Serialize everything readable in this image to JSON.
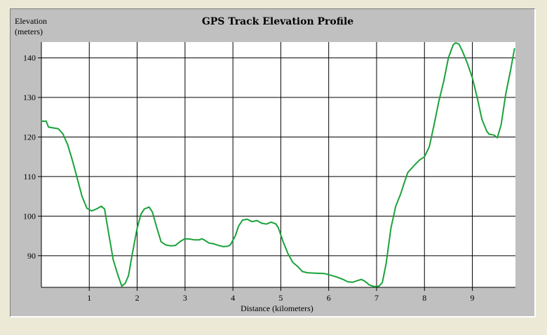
{
  "chart_data": {
    "type": "line",
    "title": "GPS Track Elevation Profile",
    "ylabel_line1": "Elevation",
    "ylabel_line2": "(meters)",
    "xlabel": "Distance (kilometers)",
    "xlim": [
      0,
      9.9
    ],
    "ylim": [
      82,
      144
    ],
    "x_ticks": [
      1,
      2,
      3,
      4,
      5,
      6,
      7,
      8,
      9
    ],
    "y_ticks": [
      90,
      100,
      110,
      120,
      130,
      140
    ],
    "grid": true,
    "legend": "none",
    "series": [
      {
        "color": "#1aa23a",
        "points": [
          [
            0.0,
            124.0
          ],
          [
            0.1,
            124.0
          ],
          [
            0.15,
            122.5
          ],
          [
            0.25,
            122.3
          ],
          [
            0.35,
            122.1
          ],
          [
            0.45,
            120.8
          ],
          [
            0.55,
            118.0
          ],
          [
            0.65,
            114.0
          ],
          [
            0.75,
            109.5
          ],
          [
            0.85,
            105.0
          ],
          [
            0.95,
            102.0
          ],
          [
            1.05,
            101.3
          ],
          [
            1.15,
            101.8
          ],
          [
            1.25,
            102.5
          ],
          [
            1.32,
            101.8
          ],
          [
            1.4,
            96.0
          ],
          [
            1.5,
            89.0
          ],
          [
            1.6,
            85.0
          ],
          [
            1.68,
            82.3
          ],
          [
            1.75,
            83.0
          ],
          [
            1.82,
            85.0
          ],
          [
            1.9,
            90.5
          ],
          [
            2.0,
            97.0
          ],
          [
            2.08,
            100.5
          ],
          [
            2.15,
            101.8
          ],
          [
            2.25,
            102.3
          ],
          [
            2.32,
            101.0
          ],
          [
            2.4,
            97.5
          ],
          [
            2.5,
            93.5
          ],
          [
            2.6,
            92.7
          ],
          [
            2.7,
            92.5
          ],
          [
            2.8,
            92.6
          ],
          [
            2.9,
            93.6
          ],
          [
            3.0,
            94.3
          ],
          [
            3.1,
            94.2
          ],
          [
            3.2,
            94.0
          ],
          [
            3.3,
            94.0
          ],
          [
            3.35,
            94.3
          ],
          [
            3.4,
            94.0
          ],
          [
            3.5,
            93.2
          ],
          [
            3.6,
            93.0
          ],
          [
            3.7,
            92.6
          ],
          [
            3.8,
            92.3
          ],
          [
            3.9,
            92.4
          ],
          [
            3.95,
            92.8
          ],
          [
            4.05,
            95.0
          ],
          [
            4.12,
            97.5
          ],
          [
            4.2,
            99.0
          ],
          [
            4.3,
            99.2
          ],
          [
            4.4,
            98.6
          ],
          [
            4.5,
            98.9
          ],
          [
            4.6,
            98.2
          ],
          [
            4.7,
            98.0
          ],
          [
            4.8,
            98.5
          ],
          [
            4.9,
            98.0
          ],
          [
            4.95,
            97.0
          ],
          [
            5.05,
            93.5
          ],
          [
            5.15,
            90.5
          ],
          [
            5.25,
            88.3
          ],
          [
            5.35,
            87.3
          ],
          [
            5.45,
            86.0
          ],
          [
            5.55,
            85.7
          ],
          [
            5.7,
            85.6
          ],
          [
            5.9,
            85.5
          ],
          [
            6.0,
            85.2
          ],
          [
            6.15,
            84.7
          ],
          [
            6.3,
            84.0
          ],
          [
            6.4,
            83.4
          ],
          [
            6.5,
            83.3
          ],
          [
            6.6,
            83.7
          ],
          [
            6.68,
            84.0
          ],
          [
            6.75,
            83.6
          ],
          [
            6.85,
            82.6
          ],
          [
            6.95,
            82.2
          ],
          [
            7.05,
            82.3
          ],
          [
            7.12,
            83.2
          ],
          [
            7.2,
            88.0
          ],
          [
            7.3,
            97.0
          ],
          [
            7.4,
            102.5
          ],
          [
            7.5,
            105.5
          ],
          [
            7.58,
            108.5
          ],
          [
            7.65,
            111.0
          ],
          [
            7.8,
            113.0
          ],
          [
            7.9,
            114.2
          ],
          [
            8.0,
            115.0
          ],
          [
            8.1,
            117.5
          ],
          [
            8.2,
            123.0
          ],
          [
            8.3,
            129.0
          ],
          [
            8.4,
            134.0
          ],
          [
            8.5,
            140.0
          ],
          [
            8.6,
            143.3
          ],
          [
            8.65,
            143.8
          ],
          [
            8.72,
            143.5
          ],
          [
            8.8,
            141.5
          ],
          [
            8.9,
            138.5
          ],
          [
            9.0,
            135.0
          ],
          [
            9.1,
            130.0
          ],
          [
            9.2,
            124.5
          ],
          [
            9.3,
            121.5
          ],
          [
            9.35,
            120.7
          ],
          [
            9.45,
            120.5
          ],
          [
            9.52,
            119.8
          ],
          [
            9.6,
            123.0
          ],
          [
            9.7,
            131.0
          ],
          [
            9.8,
            137.0
          ],
          [
            9.88,
            142.3
          ]
        ]
      }
    ]
  }
}
